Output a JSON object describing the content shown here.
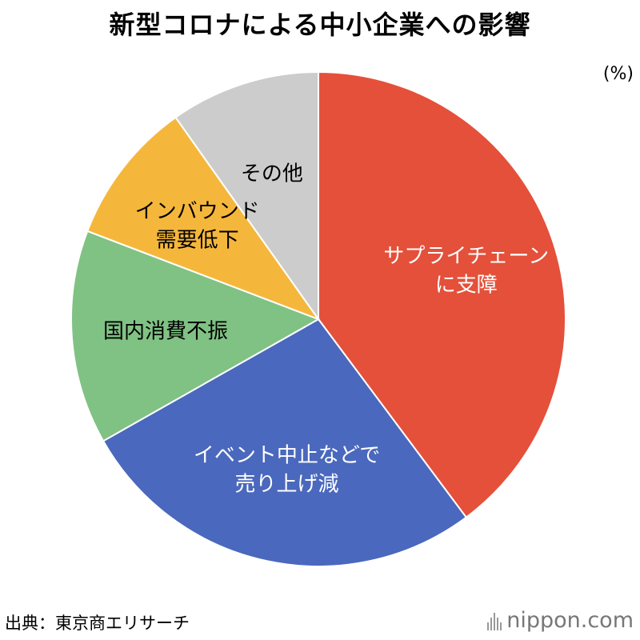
{
  "title": "新型コロナによる中小企業への影響",
  "unit": "(%)",
  "source": "出典：東京商エリサーチ",
  "brand": "nippon.com",
  "chart_data": {
    "type": "pie",
    "title": "新型コロナによる中小企業への影響",
    "slices": [
      {
        "label": [
          "サプライチェーン",
          "に支障"
        ],
        "value": 39.8,
        "color": "#e4503a",
        "text_color": "#ffffff"
      },
      {
        "label": [
          "イベント中止などで",
          "売り上げ減"
        ],
        "value": 27.0,
        "color": "#4a68bd",
        "text_color": "#ffffff"
      },
      {
        "label": [
          "国内消費不振"
        ],
        "value": 14.0,
        "color": "#80c284",
        "text_color": "#000000"
      },
      {
        "label": [
          "インバウンド",
          "需要低下"
        ],
        "value": 9.4,
        "color": "#f5b73b",
        "text_color": "#000000"
      },
      {
        "label": [
          "その他"
        ],
        "value": 9.8,
        "color": "#cccccc",
        "text_color": "#000000"
      }
    ],
    "start": "12 o'clock",
    "direction": "clockwise",
    "legend": "none"
  }
}
